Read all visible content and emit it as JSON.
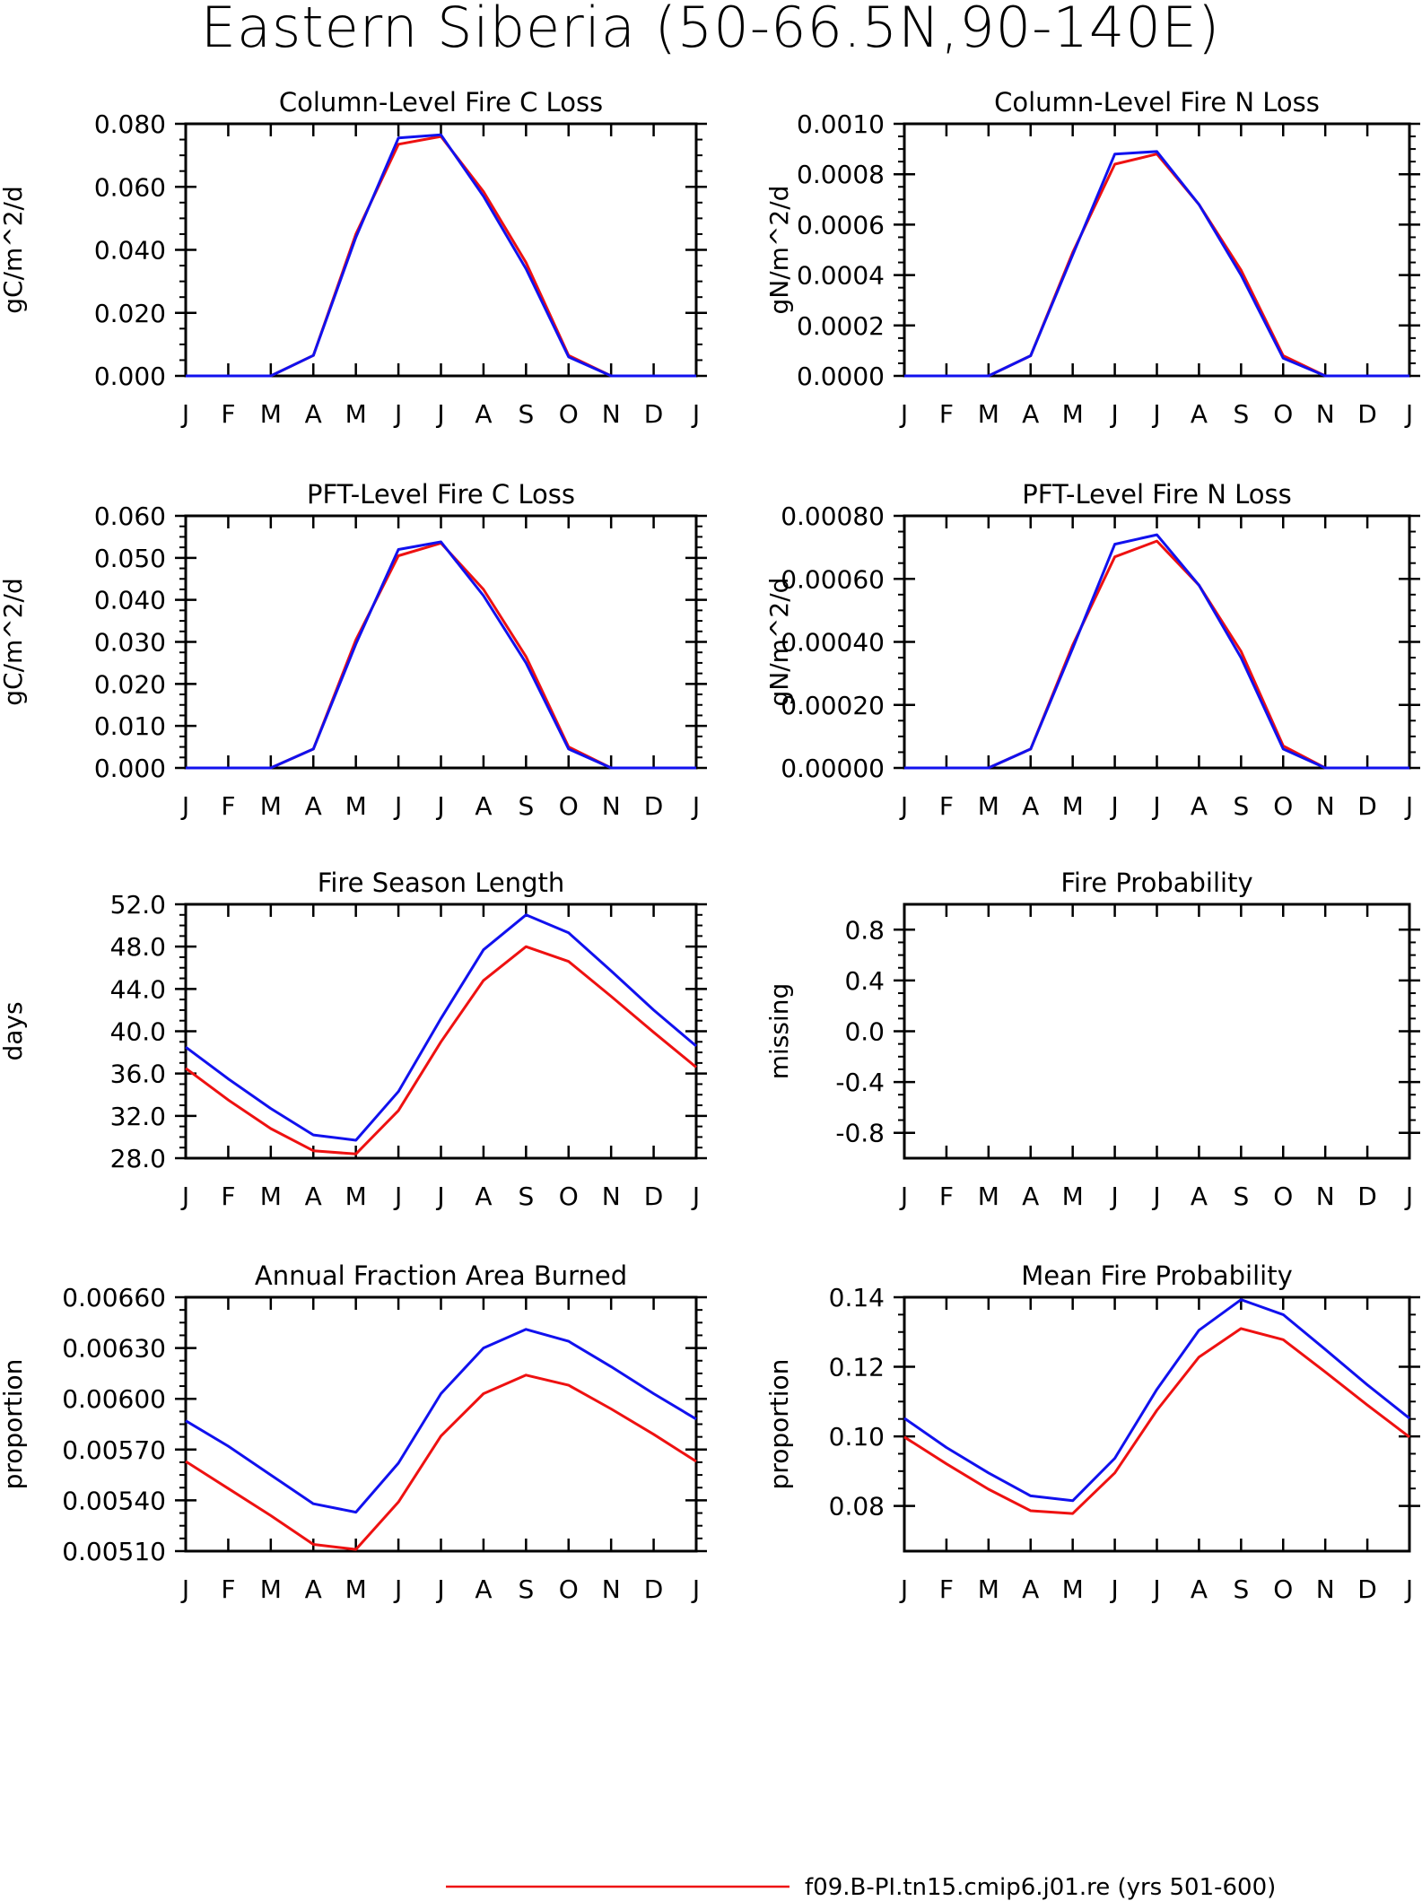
{
  "title": "Eastern Siberia (50-66.5N,90-140E)",
  "colors": {
    "case1": "#ee1111",
    "case2": "#1111ee",
    "frame": "#000000"
  },
  "legend": [
    {
      "label": "f09.B-PI.tn15.cmip6.j01.re (yrs 501-600)",
      "color": "#ee1111"
    }
  ],
  "chart_data": [
    {
      "type": "line",
      "title": "Column-Level Fire C Loss",
      "ylabel": "gC/m^2/d",
      "categories": [
        "J",
        "F",
        "M",
        "A",
        "M",
        "J",
        "J",
        "A",
        "S",
        "O",
        "N",
        "D",
        "J"
      ],
      "ylim": [
        0,
        0.08
      ],
      "yticks": [
        "0.000",
        "0.020",
        "0.040",
        "0.060",
        "0.080"
      ],
      "series": [
        {
          "color": "#ee1111",
          "values": [
            0,
            0,
            0,
            0.0065,
            0.045,
            0.0735,
            0.076,
            0.0585,
            0.036,
            0.0065,
            0,
            0,
            0
          ]
        },
        {
          "color": "#1111ee",
          "values": [
            0,
            0,
            0,
            0.0065,
            0.044,
            0.0755,
            0.0765,
            0.057,
            0.034,
            0.006,
            0,
            0,
            0
          ]
        }
      ]
    },
    {
      "type": "line",
      "title": "Column-Level Fire N Loss",
      "ylabel": "gN/m^2/d",
      "categories": [
        "J",
        "F",
        "M",
        "A",
        "M",
        "J",
        "J",
        "A",
        "S",
        "O",
        "N",
        "D",
        "J"
      ],
      "ylim": [
        0,
        0.001
      ],
      "yticks": [
        "0.0000",
        "0.0002",
        "0.0004",
        "0.0006",
        "0.0008",
        "0.0010"
      ],
      "series": [
        {
          "color": "#ee1111",
          "values": [
            0,
            0,
            0,
            8e-05,
            0.00049,
            0.00084,
            0.00088,
            0.00068,
            0.00042,
            8e-05,
            0,
            0,
            0
          ]
        },
        {
          "color": "#1111ee",
          "values": [
            0,
            0,
            0,
            8e-05,
            0.00048,
            0.00088,
            0.00089,
            0.00068,
            0.0004,
            7e-05,
            0,
            0,
            0
          ]
        }
      ]
    },
    {
      "type": "line",
      "title": "PFT-Level Fire C Loss",
      "ylabel": "gC/m^2/d",
      "categories": [
        "J",
        "F",
        "M",
        "A",
        "M",
        "J",
        "J",
        "A",
        "S",
        "O",
        "N",
        "D",
        "J"
      ],
      "ylim": [
        0,
        0.06
      ],
      "yticks": [
        "0.000",
        "0.010",
        "0.020",
        "0.030",
        "0.040",
        "0.050",
        "0.060"
      ],
      "series": [
        {
          "color": "#ee1111",
          "values": [
            0,
            0,
            0,
            0.0045,
            0.0305,
            0.0505,
            0.0535,
            0.0425,
            0.0265,
            0.005,
            0,
            0,
            0
          ]
        },
        {
          "color": "#1111ee",
          "values": [
            0,
            0,
            0,
            0.0045,
            0.0295,
            0.052,
            0.0538,
            0.041,
            0.025,
            0.0045,
            0,
            0,
            0
          ]
        }
      ]
    },
    {
      "type": "line",
      "title": "PFT-Level Fire N Loss",
      "ylabel": "gN/m^2/d",
      "categories": [
        "J",
        "F",
        "M",
        "A",
        "M",
        "J",
        "J",
        "A",
        "S",
        "O",
        "N",
        "D",
        "J"
      ],
      "ylim": [
        0,
        0.0008
      ],
      "yticks": [
        "0.00000",
        "0.00020",
        "0.00040",
        "0.00060",
        "0.00080"
      ],
      "series": [
        {
          "color": "#ee1111",
          "values": [
            0,
            0,
            0,
            6e-05,
            0.00039,
            0.00067,
            0.00072,
            0.00058,
            0.00037,
            7e-05,
            0,
            0,
            0
          ]
        },
        {
          "color": "#1111ee",
          "values": [
            0,
            0,
            0,
            6e-05,
            0.00038,
            0.00071,
            0.00074,
            0.00058,
            0.00035,
            6e-05,
            0,
            0,
            0
          ]
        }
      ]
    },
    {
      "type": "line",
      "title": "Fire Season Length",
      "ylabel": "days",
      "categories": [
        "J",
        "F",
        "M",
        "A",
        "M",
        "J",
        "J",
        "A",
        "S",
        "O",
        "N",
        "D",
        "J"
      ],
      "ylim": [
        28,
        52
      ],
      "yticks": [
        "28.0",
        "32.0",
        "36.0",
        "40.0",
        "44.0",
        "48.0",
        "52.0"
      ],
      "series": [
        {
          "color": "#ee1111",
          "values": [
            36.5,
            33.5,
            30.8,
            28.7,
            28.4,
            32.5,
            39,
            44.8,
            48,
            46.6,
            43.3,
            39.9,
            36.6
          ]
        },
        {
          "color": "#1111ee",
          "values": [
            38.5,
            35.5,
            32.7,
            30.2,
            29.7,
            34.3,
            41.2,
            47.7,
            51,
            49.3,
            45.7,
            42,
            38.6
          ]
        }
      ]
    },
    {
      "type": "line",
      "title": "Fire Probability",
      "ylabel": "missing",
      "categories": [
        "J",
        "F",
        "M",
        "A",
        "M",
        "J",
        "J",
        "A",
        "S",
        "O",
        "N",
        "D",
        "J"
      ],
      "ylim": [
        -1,
        1
      ],
      "yticks": [
        "-0.8",
        "-0.4",
        "0.0",
        "0.4",
        "0.8"
      ],
      "ytick_values": [
        -0.8,
        -0.4,
        0,
        0.4,
        0.8
      ],
      "series": []
    },
    {
      "type": "line",
      "title": "Annual Fraction Area Burned",
      "ylabel": "proportion",
      "categories": [
        "J",
        "F",
        "M",
        "A",
        "M",
        "J",
        "J",
        "A",
        "S",
        "O",
        "N",
        "D",
        "J"
      ],
      "ylim": [
        0.0051,
        0.0066
      ],
      "yticks": [
        "0.00510",
        "0.00540",
        "0.00570",
        "0.00600",
        "0.00630",
        "0.00660"
      ],
      "series": [
        {
          "color": "#ee1111",
          "values": [
            0.00563,
            0.00547,
            0.00531,
            0.00514,
            0.00511,
            0.00539,
            0.00578,
            0.00603,
            0.00614,
            0.00608,
            0.00594,
            0.00579,
            0.00563
          ]
        },
        {
          "color": "#1111ee",
          "values": [
            0.00587,
            0.00572,
            0.00555,
            0.00538,
            0.00533,
            0.00562,
            0.00603,
            0.0063,
            0.00641,
            0.00634,
            0.00619,
            0.00603,
            0.00588
          ]
        }
      ]
    },
    {
      "type": "line",
      "title": "Mean Fire Probability",
      "ylabel": "proportion",
      "categories": [
        "J",
        "F",
        "M",
        "A",
        "M",
        "J",
        "J",
        "A",
        "S",
        "O",
        "N",
        "D",
        "J"
      ],
      "ylim": [
        0.067,
        0.14
      ],
      "yticks": [
        "0.08",
        "0.10",
        "0.12",
        "0.14"
      ],
      "ytick_values": [
        0.08,
        0.1,
        0.12,
        0.14
      ],
      "series": [
        {
          "color": "#ee1111",
          "values": [
            0.0998,
            0.0921,
            0.0848,
            0.0786,
            0.0778,
            0.0895,
            0.1075,
            0.1228,
            0.131,
            0.1278,
            0.1185,
            0.109,
            0.0998
          ]
        },
        {
          "color": "#1111ee",
          "values": [
            0.1052,
            0.0968,
            0.0895,
            0.0829,
            0.0815,
            0.0937,
            0.1135,
            0.1305,
            0.1393,
            0.135,
            0.125,
            0.1148,
            0.1052
          ]
        }
      ]
    }
  ]
}
